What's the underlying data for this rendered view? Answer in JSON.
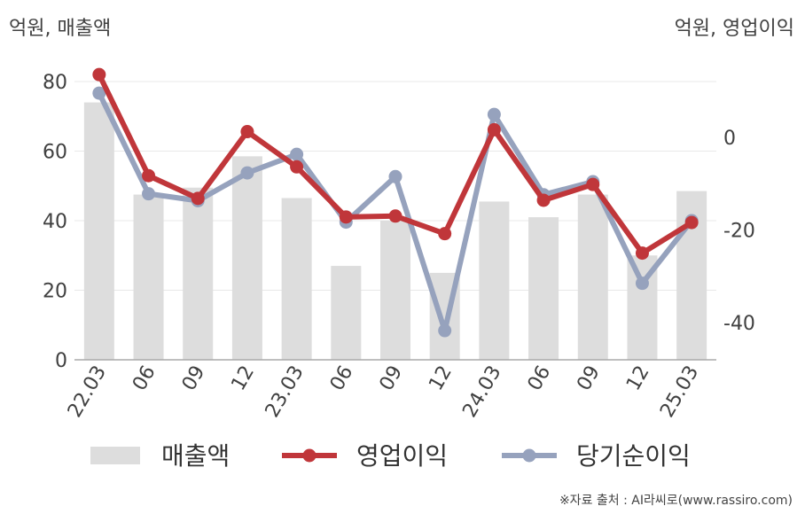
{
  "labels": {
    "unit_left": "억원, 매출액",
    "unit_right": "억원, 영업이익",
    "source": "※자료 출처 : AI라씨로(www.rassiro.com)"
  },
  "colors": {
    "revenue": "#dddddd",
    "operating_profit": "#c0363a",
    "net_income": "#96a2bd"
  },
  "chart_data": {
    "type": "bar+line",
    "categories": [
      "22.03",
      "06",
      "09",
      "12",
      "23.03",
      "06",
      "09",
      "12",
      "24.03",
      "06",
      "09",
      "12",
      "25.03"
    ],
    "left_axis": {
      "ylim": [
        0,
        80
      ],
      "ticks": [
        "0",
        "20",
        "40",
        "60",
        "80"
      ]
    },
    "right_axis": {
      "ylim": [
        -48,
        12
      ],
      "ticks": [
        "0",
        "-20",
        "-40"
      ]
    },
    "grid": true,
    "legend_position": "bottom",
    "series": [
      {
        "name": "매출액",
        "type": "bar",
        "axis": "left",
        "values": [
          74,
          47.5,
          49.5,
          58.5,
          46.5,
          27,
          40,
          25,
          45.5,
          41,
          47.5,
          30,
          48.5
        ]
      },
      {
        "name": "영업이익",
        "type": "line",
        "axis": "right",
        "values": [
          13.5,
          -8.3,
          -13.2,
          1.2,
          -6.4,
          -17.2,
          -17,
          -20.8,
          1.6,
          -13.6,
          -10.2,
          -25,
          -18.4
        ]
      },
      {
        "name": "당기순이익",
        "type": "line",
        "axis": "right",
        "values": [
          9.5,
          -12.2,
          -13.7,
          -7.7,
          -3.7,
          -18.3,
          -8.5,
          -41.7,
          4.9,
          -12.4,
          -9.6,
          -31.5,
          -18
        ]
      }
    ]
  }
}
